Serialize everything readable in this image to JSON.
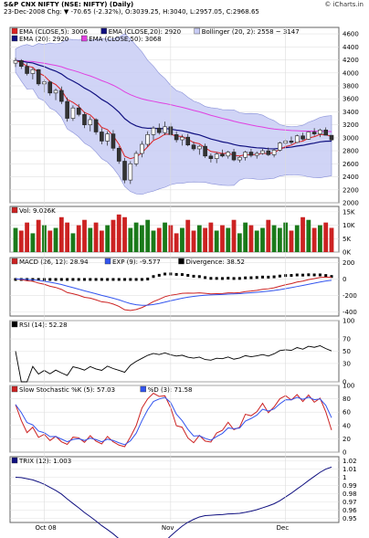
{
  "header": {
    "title": "S&P CNX NIFTY (NSE: NIFTY) (Daily)",
    "brand": "© iCharts.in",
    "quote": "23-Dec-2008 Chg: ▼ -70.65 (-2.32%), O:3039.25, H:3040, L:2957.05, C:2968.65"
  },
  "colors": {
    "up": "#1a7a1a",
    "down": "#cc2222",
    "band_fill": "#c8ccf5",
    "ema5": "#dd2222",
    "ema20": "#101080",
    "ema50": "#e040e0",
    "macd_exp": "#3355ee",
    "panel_bg": "#ffffff"
  },
  "panels": {
    "price": {
      "legend": [
        "EMA (CLOSE,5): 3006",
        "EMA (CLOSE,20): 2920",
        "Bollinger (20, 2): 2558 ~ 3147",
        "EMA (20): 2920",
        "EMA (CLOSE,50): 3068"
      ],
      "ticks": [
        "4600",
        "4400",
        "4200",
        "4000",
        "3800",
        "3600",
        "3400",
        "3200",
        "3000",
        "2800",
        "2600",
        "2400",
        "2200",
        "2000"
      ]
    },
    "volume": {
      "legend": [
        "Vol: 9.026K"
      ],
      "ticks": [
        "15K",
        "10K",
        "5K",
        "0K"
      ]
    },
    "macd": {
      "legend": [
        "MACD (26, 12): 28.94",
        "EXP (9): -9.577",
        "Divergence: 38.52"
      ],
      "ticks": [
        "200",
        "0",
        "-200",
        "-400"
      ]
    },
    "rsi": {
      "legend": [
        "RSI (14): 52.28"
      ],
      "ticks": [
        "100",
        "70",
        "50",
        "30",
        "0"
      ]
    },
    "stoch": {
      "legend": [
        "Slow Stochastic %K (5): 57.03",
        "%D (3): 71.58"
      ],
      "ticks": [
        "100",
        "80",
        "60",
        "40",
        "20",
        "0"
      ]
    },
    "trix": {
      "legend": [
        "TRIX (12): 1.003"
      ],
      "ticks": [
        "1.02",
        "1.01",
        "1",
        "0.99",
        "0.98",
        "0.97",
        "0.96",
        "0.95"
      ]
    }
  },
  "xaxis": [
    "Oct 08",
    "Nov",
    "Dec"
  ],
  "chart_data": {
    "type": "line",
    "title": "S&P CNX NIFTY (NSE: NIFTY) (Daily)",
    "x_labels": [
      "Oct 08",
      "Nov",
      "Dec"
    ],
    "ohlc": [
      [
        4150,
        4230,
        4090,
        4190
      ],
      [
        4190,
        4210,
        4060,
        4100
      ],
      [
        4100,
        4150,
        3960,
        3990
      ],
      [
        3990,
        4080,
        3900,
        4050
      ],
      [
        4050,
        4060,
        3800,
        3830
      ],
      [
        3830,
        3900,
        3700,
        3860
      ],
      [
        3860,
        3880,
        3650,
        3690
      ],
      [
        3690,
        3760,
        3580,
        3730
      ],
      [
        3730,
        3790,
        3520,
        3560
      ],
      [
        3560,
        3620,
        3250,
        3300
      ],
      [
        3300,
        3500,
        3260,
        3460
      ],
      [
        3460,
        3520,
        3330,
        3360
      ],
      [
        3360,
        3400,
        3150,
        3200
      ],
      [
        3200,
        3330,
        3100,
        3280
      ],
      [
        3280,
        3300,
        3050,
        3090
      ],
      [
        3090,
        3150,
        2900,
        2950
      ],
      [
        2950,
        3100,
        2880,
        3060
      ],
      [
        3060,
        3120,
        2800,
        2840
      ],
      [
        2840,
        2870,
        2600,
        2640
      ],
      [
        2640,
        2690,
        2300,
        2350
      ],
      [
        2350,
        2640,
        2290,
        2600
      ],
      [
        2600,
        2800,
        2560,
        2760
      ],
      [
        2760,
        2950,
        2700,
        2900
      ],
      [
        2900,
        3100,
        2860,
        3050
      ],
      [
        3050,
        3180,
        2970,
        3150
      ],
      [
        3150,
        3220,
        3050,
        3080
      ],
      [
        3080,
        3250,
        3040,
        3170
      ],
      [
        3170,
        3230,
        3020,
        3050
      ],
      [
        3050,
        3100,
        2930,
        2970
      ],
      [
        2970,
        3050,
        2880,
        3010
      ],
      [
        3010,
        3060,
        2870,
        2890
      ],
      [
        2890,
        2940,
        2800,
        2830
      ],
      [
        2830,
        2890,
        2740,
        2870
      ],
      [
        2870,
        2910,
        2690,
        2720
      ],
      [
        2720,
        2760,
        2620,
        2680
      ],
      [
        2680,
        2780,
        2610,
        2750
      ],
      [
        2750,
        2820,
        2700,
        2720
      ],
      [
        2720,
        2800,
        2680,
        2780
      ],
      [
        2780,
        2830,
        2640,
        2660
      ],
      [
        2660,
        2720,
        2620,
        2700
      ],
      [
        2700,
        2800,
        2650,
        2780
      ],
      [
        2780,
        2830,
        2700,
        2730
      ],
      [
        2730,
        2790,
        2680,
        2760
      ],
      [
        2760,
        2830,
        2740,
        2800
      ],
      [
        2800,
        2850,
        2720,
        2740
      ],
      [
        2740,
        2830,
        2700,
        2810
      ],
      [
        2810,
        2940,
        2790,
        2920
      ],
      [
        2920,
        2980,
        2880,
        2950
      ],
      [
        2950,
        3020,
        2900,
        2930
      ],
      [
        2930,
        3050,
        2920,
        3030
      ],
      [
        3030,
        3080,
        2960,
        2980
      ],
      [
        2980,
        3100,
        2970,
        3090
      ],
      [
        3090,
        3150,
        3030,
        3060
      ],
      [
        3060,
        3140,
        3010,
        3120
      ],
      [
        3120,
        3160,
        3040,
        3040
      ],
      [
        3039.25,
        3040,
        2957.05,
        2968.65
      ]
    ],
    "volume_k": [
      9,
      8,
      11,
      7,
      12,
      10,
      8,
      9,
      13,
      11,
      7,
      10,
      12,
      9,
      11,
      8,
      10,
      12,
      14,
      13,
      9,
      11,
      10,
      12,
      8,
      9,
      11,
      10,
      7,
      9,
      12,
      8,
      10,
      9,
      11,
      8,
      10,
      9,
      12,
      7,
      11,
      10,
      8,
      9,
      12,
      10,
      9,
      11,
      8,
      10,
      13,
      12,
      9,
      10,
      11,
      9.026
    ],
    "ylim_price": [
      2000,
      4700
    ]
  }
}
